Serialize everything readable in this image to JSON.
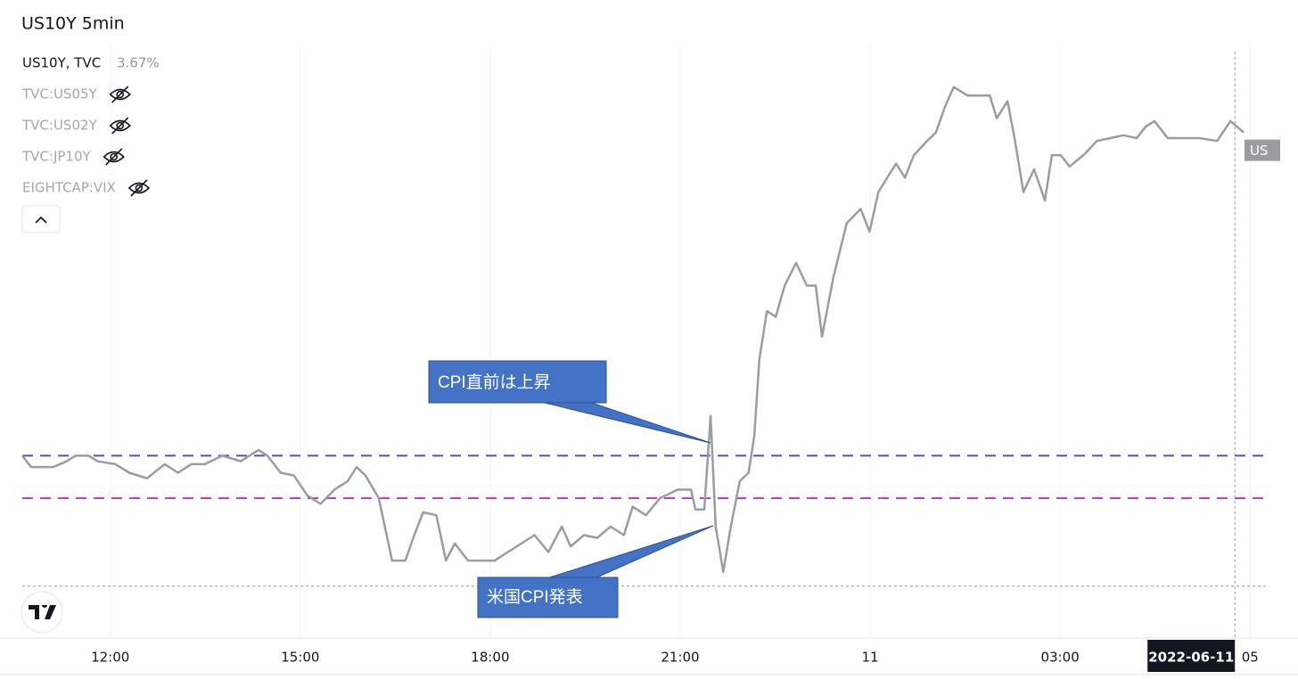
{
  "chart_data": {
    "type": "line",
    "title": "US10Y 5min",
    "legend_value": "3.67%",
    "hidden_series": [
      "TVC:US05Y",
      "TVC:US02Y",
      "TVC:JP10Y",
      "EIGHTCAP:VIX"
    ],
    "price_label": "US",
    "x": [
      10.61,
      10.75,
      11.1,
      11.31,
      11.45,
      11.66,
      11.8,
      12.08,
      12.3,
      12.58,
      12.86,
      13.07,
      13.28,
      13.49,
      13.77,
      14.06,
      14.34,
      14.48,
      14.69,
      14.9,
      15.11,
      15.32,
      15.54,
      15.75,
      15.89,
      16.03,
      16.24,
      16.45,
      16.66,
      16.8,
      16.94,
      17.15,
      17.3,
      17.44,
      17.65,
      17.86,
      18.07,
      18.28,
      18.49,
      18.7,
      18.92,
      19.13,
      19.27,
      19.48,
      19.69,
      19.9,
      20.11,
      20.25,
      20.46,
      20.68,
      20.96,
      21.17,
      21.24,
      21.38,
      21.48,
      21.56,
      21.68,
      21.8,
      21.94,
      22.08,
      22.17,
      22.25,
      22.37,
      22.51,
      22.65,
      22.83,
      23.0,
      23.14,
      23.24,
      23.42,
      23.63,
      23.85,
      23.99,
      24.13,
      24.27,
      24.41,
      24.55,
      24.69,
      24.9,
      25.04,
      25.18,
      25.32,
      25.54,
      25.89,
      26.0,
      26.17,
      26.28,
      26.42,
      26.59,
      26.76,
      26.87,
      27.01,
      27.15,
      27.37,
      27.58,
      27.79,
      28.0,
      28.21,
      28.35,
      28.49,
      28.7,
      28.92,
      29.2,
      29.48,
      29.69,
      29.9
    ],
    "series": [
      {
        "name": "US10Y, TVC",
        "color": "#9a9ca1",
        "values": [
          3.046,
          3.042,
          3.042,
          3.044,
          3.046,
          3.046,
          3.044,
          3.043,
          3.04,
          3.038,
          3.043,
          3.04,
          3.043,
          3.043,
          3.046,
          3.044,
          3.048,
          3.046,
          3.04,
          3.039,
          3.032,
          3.029,
          3.034,
          3.037,
          3.042,
          3.039,
          3.031,
          3.009,
          3.009,
          3.018,
          3.026,
          3.025,
          3.009,
          3.015,
          3.009,
          3.009,
          3.009,
          3.012,
          3.015,
          3.018,
          3.012,
          3.021,
          3.014,
          3.018,
          3.017,
          3.021,
          3.018,
          3.028,
          3.025,
          3.031,
          3.034,
          3.034,
          3.027,
          3.027,
          3.06,
          3.021,
          3.005,
          3.021,
          3.037,
          3.04,
          3.053,
          3.08,
          3.097,
          3.095,
          3.106,
          3.114,
          3.106,
          3.106,
          3.088,
          3.109,
          3.128,
          3.133,
          3.125,
          3.139,
          3.144,
          3.149,
          3.144,
          3.152,
          3.157,
          3.16,
          3.169,
          3.176,
          3.173,
          3.173,
          3.165,
          3.171,
          3.158,
          3.139,
          3.147,
          3.136,
          3.152,
          3.152,
          3.148,
          3.152,
          3.157,
          3.158,
          3.159,
          3.158,
          3.162,
          3.164,
          3.158,
          3.158,
          3.158,
          3.157,
          3.164,
          3.16
        ]
      }
    ],
    "xlim": [
      10.61,
      30.25
    ],
    "ylim": [
      2.982,
      3.191
    ],
    "xticks": [
      {
        "value": 12,
        "label": "12:00"
      },
      {
        "value": 15,
        "label": "15:00"
      },
      {
        "value": 18,
        "label": "18:00"
      },
      {
        "value": 21,
        "label": "21:00"
      },
      {
        "value": 24,
        "label": "11"
      },
      {
        "value": 27,
        "label": "03:00"
      },
      {
        "value": 30,
        "label": "05"
      }
    ],
    "hlines": [
      {
        "value": 3.046,
        "color": "#5a4fb0"
      },
      {
        "value": 3.031,
        "color": "#b03ab8"
      }
    ],
    "crosshair": {
      "x": 29.76,
      "y": 3.0,
      "label": "2022-06-11"
    },
    "annotations": [
      "CPI直前は上昇",
      "米国CPI発表"
    ],
    "grid": true
  }
}
